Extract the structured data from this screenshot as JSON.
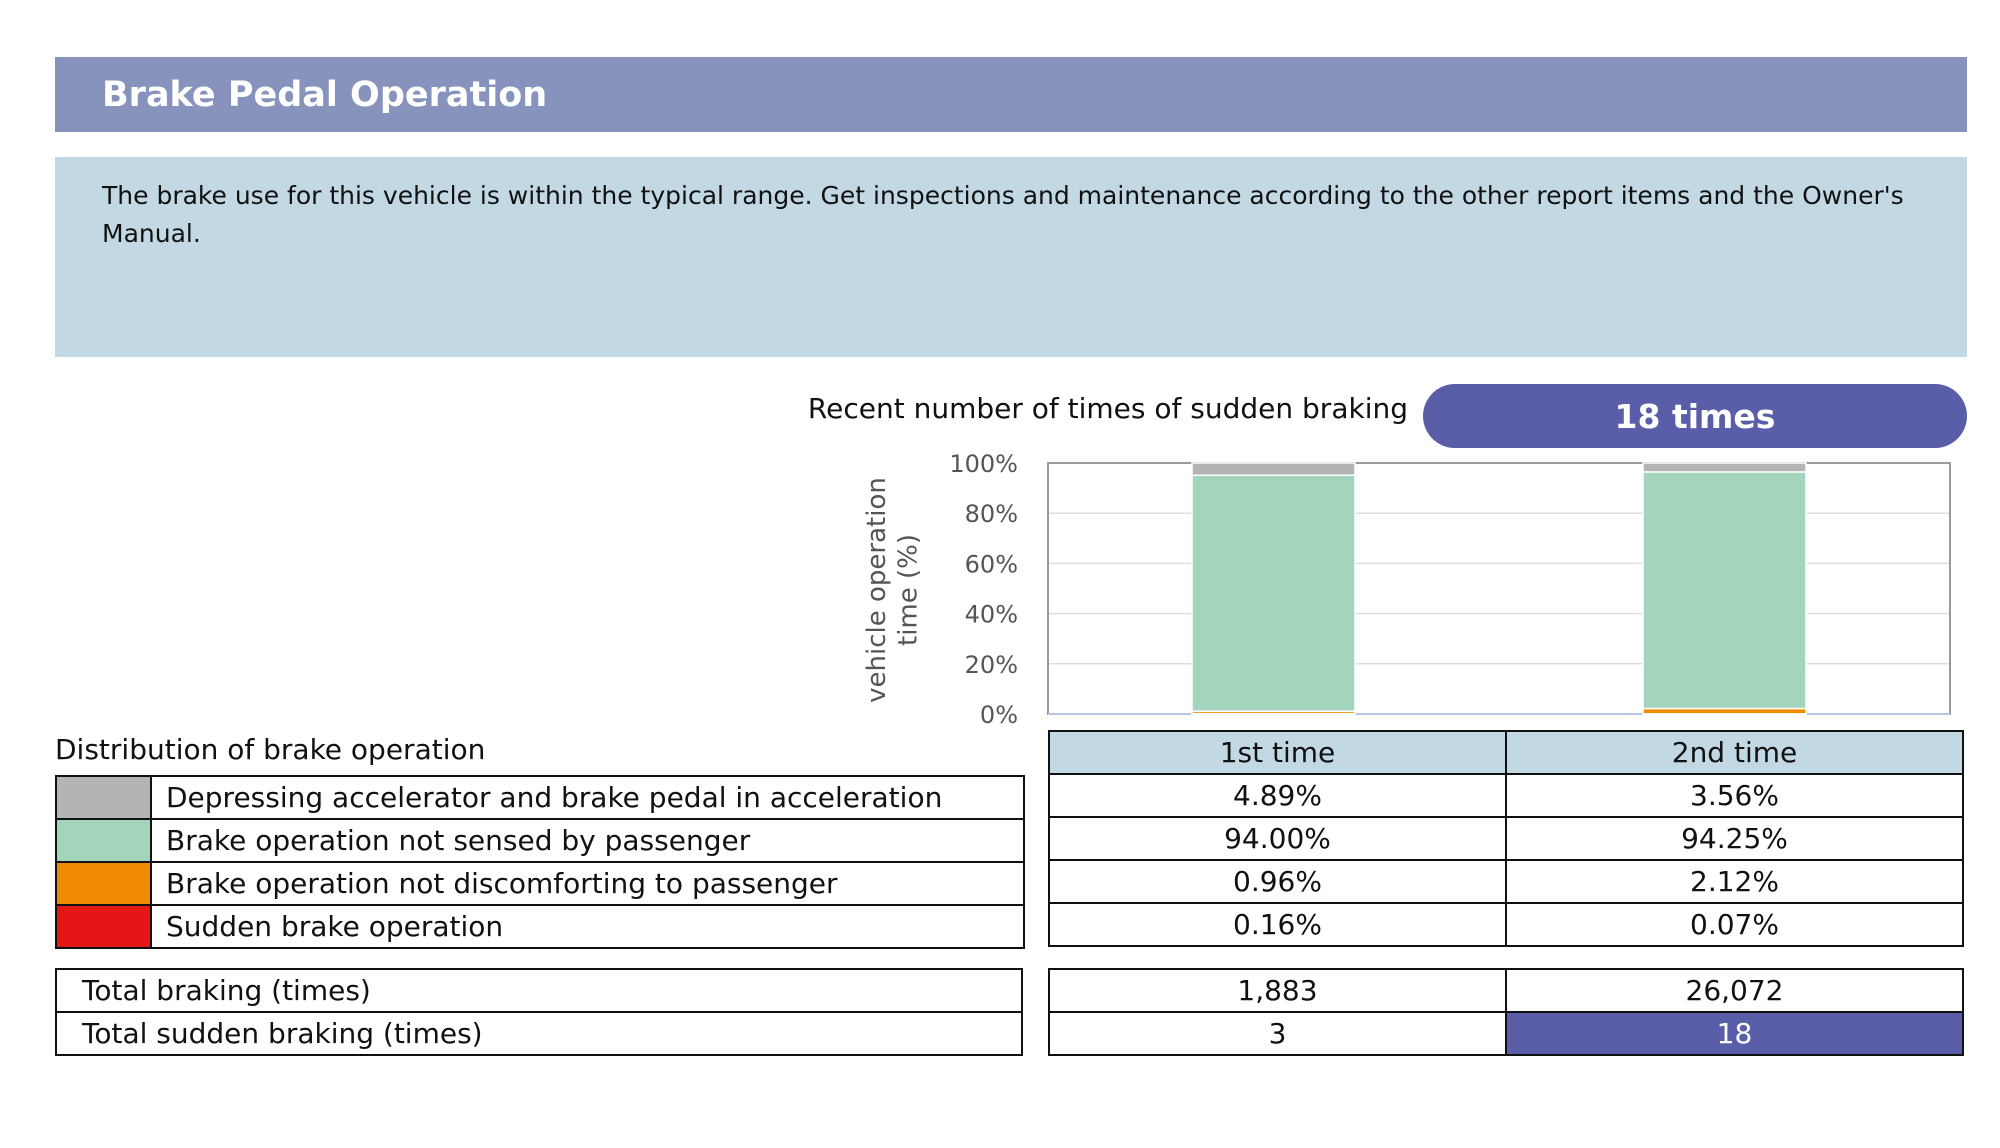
{
  "header": {
    "title": "Brake Pedal Operation"
  },
  "summary": {
    "text": "The brake use for this vehicle is within the typical range. Get inspections and maintenance according to the other report items and the Owner's Manual."
  },
  "sudden_braking": {
    "label": "Recent number of times of sudden braking",
    "value": "18 times"
  },
  "distribution": {
    "title": "Distribution of brake operation",
    "columns": [
      "1st time",
      "2nd time"
    ],
    "rows": [
      {
        "label": "Depressing accelerator and brake pedal in acceleration",
        "color": "#b4b4b4",
        "values": [
          "4.89%",
          "3.56%"
        ]
      },
      {
        "label": "Brake operation not sensed by passenger",
        "color": "#a3d4bc",
        "values": [
          "94.00%",
          "94.25%"
        ]
      },
      {
        "label": "Brake operation not discomforting to passenger",
        "color": "#f08a00",
        "values": [
          "0.96%",
          "2.12%"
        ]
      },
      {
        "label": "Sudden brake operation",
        "color": "#e41617",
        "values": [
          "0.16%",
          "0.07%"
        ]
      }
    ]
  },
  "totals": [
    {
      "label": "Total braking (times)",
      "values": [
        "1,883",
        "26,072"
      ]
    },
    {
      "label": "Total sudden braking (times)",
      "values": [
        "3",
        "18"
      ]
    }
  ],
  "chart_data": {
    "type": "bar",
    "stacked": true,
    "categories": [
      "1st time",
      "2nd time"
    ],
    "ylabel": "vehicle operation time (%)",
    "ylim": [
      0,
      100
    ],
    "yticks": [
      "0%",
      "20%",
      "40%",
      "60%",
      "80%",
      "100%"
    ],
    "series": [
      {
        "name": "Sudden brake operation",
        "color": "#e41617",
        "values": [
          0.16,
          0.07
        ]
      },
      {
        "name": "Brake operation not discomforting to passenger",
        "color": "#f08a00",
        "values": [
          0.96,
          2.12
        ]
      },
      {
        "name": "Brake operation not sensed by passenger",
        "color": "#a3d4bc",
        "values": [
          94.0,
          94.25
        ]
      },
      {
        "name": "Depressing accelerator and brake pedal in acceleration",
        "color": "#b4b4b4",
        "values": [
          4.89,
          3.56
        ]
      }
    ]
  }
}
